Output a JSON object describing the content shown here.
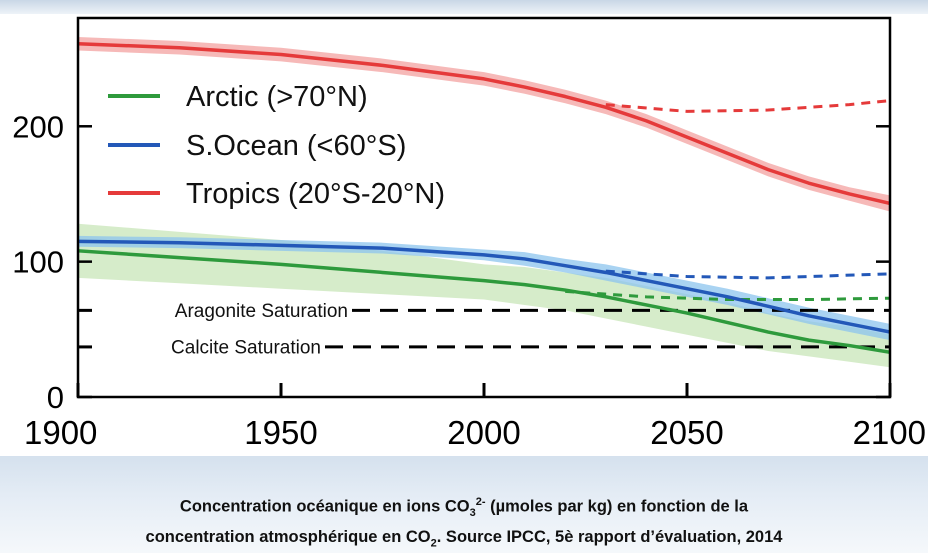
{
  "caption": {
    "line1_pre": "Concentration océanique en ions CO",
    "line1_sub": "3",
    "line1_sup": "2-",
    "line1_post": " (µmoles par kg) en fonction de la",
    "line2_pre": "concentration atmosphérique en CO",
    "line2_sub": "2",
    "line2_post": ". Source IPCC, 5è rapport d’évaluation, 2014"
  },
  "chart_data": {
    "type": "line",
    "title": "",
    "xlabel": "",
    "ylabel": "",
    "xlim": [
      1900,
      2100
    ],
    "ylim": [
      0,
      280
    ],
    "xticks": [
      1900,
      1950,
      2000,
      2050,
      2100
    ],
    "yticks": [
      0,
      100,
      200
    ],
    "grid": false,
    "legend_position": "top-left",
    "series": [
      {
        "name": "Arctic (>70°N)",
        "color": "#2e9a3c",
        "band_color": "#c8e6b8",
        "x": [
          1900,
          1925,
          1950,
          1975,
          2000,
          2010,
          2020,
          2030,
          2040,
          2050,
          2060,
          2070,
          2080,
          2090,
          2100
        ],
        "values": [
          108,
          103,
          98,
          92,
          86,
          83,
          79,
          74,
          68,
          62,
          55,
          48,
          42,
          38,
          33
        ],
        "band": [
          [
            88,
            128
          ],
          [
            84,
            122
          ],
          [
            80,
            116
          ],
          [
            76,
            108
          ],
          [
            72,
            98
          ],
          [
            68,
            96
          ],
          [
            64,
            92
          ],
          [
            58,
            88
          ],
          [
            52,
            82
          ],
          [
            46,
            76
          ],
          [
            40,
            70
          ],
          [
            34,
            62
          ],
          [
            30,
            56
          ],
          [
            26,
            52
          ],
          [
            22,
            46
          ]
        ],
        "projection_dashed": {
          "x": [
            2020,
            2040,
            2060,
            2080,
            2100
          ],
          "values": [
            78,
            74,
            72,
            72,
            73
          ]
        }
      },
      {
        "name": "S.Ocean (<60°S)",
        "color": "#2358b8",
        "band_color": "#8cc4ee",
        "x": [
          1900,
          1925,
          1950,
          1975,
          2000,
          2010,
          2020,
          2030,
          2040,
          2050,
          2060,
          2070,
          2080,
          2090,
          2100
        ],
        "values": [
          115,
          114,
          112,
          110,
          105,
          102,
          97,
          92,
          86,
          80,
          74,
          67,
          60,
          54,
          48
        ],
        "band": [
          [
            111,
            119
          ],
          [
            110,
            118
          ],
          [
            108,
            116
          ],
          [
            106,
            114
          ],
          [
            101,
            109
          ],
          [
            97,
            107
          ],
          [
            92,
            102
          ],
          [
            86,
            98
          ],
          [
            80,
            92
          ],
          [
            74,
            86
          ],
          [
            68,
            80
          ],
          [
            61,
            73
          ],
          [
            54,
            66
          ],
          [
            48,
            60
          ],
          [
            42,
            54
          ]
        ],
        "projection_dashed": {
          "x": [
            2030,
            2050,
            2070,
            2090,
            2100
          ],
          "values": [
            93,
            89,
            88,
            90,
            91
          ]
        }
      },
      {
        "name": "Tropics (20°S-20°N)",
        "color": "#e53a3a",
        "band_color": "#f3a2a0",
        "x": [
          1900,
          1925,
          1950,
          1975,
          2000,
          2010,
          2020,
          2030,
          2040,
          2050,
          2060,
          2070,
          2080,
          2090,
          2100
        ],
        "values": [
          261,
          258,
          253,
          245,
          235,
          229,
          222,
          214,
          204,
          192,
          180,
          168,
          158,
          150,
          143
        ],
        "band": [
          [
            256,
            266
          ],
          [
            253,
            263
          ],
          [
            248,
            258
          ],
          [
            240,
            250
          ],
          [
            230,
            240
          ],
          [
            224,
            234
          ],
          [
            217,
            227
          ],
          [
            209,
            219
          ],
          [
            199,
            209
          ],
          [
            187,
            197
          ],
          [
            175,
            185
          ],
          [
            163,
            173
          ],
          [
            153,
            163
          ],
          [
            145,
            155
          ],
          [
            137,
            149
          ]
        ],
        "projection_dashed": {
          "x": [
            2030,
            2050,
            2070,
            2090,
            2100
          ],
          "values": [
            216,
            211,
            212,
            216,
            219
          ]
        }
      }
    ],
    "thresholds": [
      {
        "label": "Aragonite Saturation",
        "value": 64,
        "color": "#000000"
      },
      {
        "label": "Calcite Saturation",
        "value": 37,
        "color": "#000000"
      }
    ]
  }
}
